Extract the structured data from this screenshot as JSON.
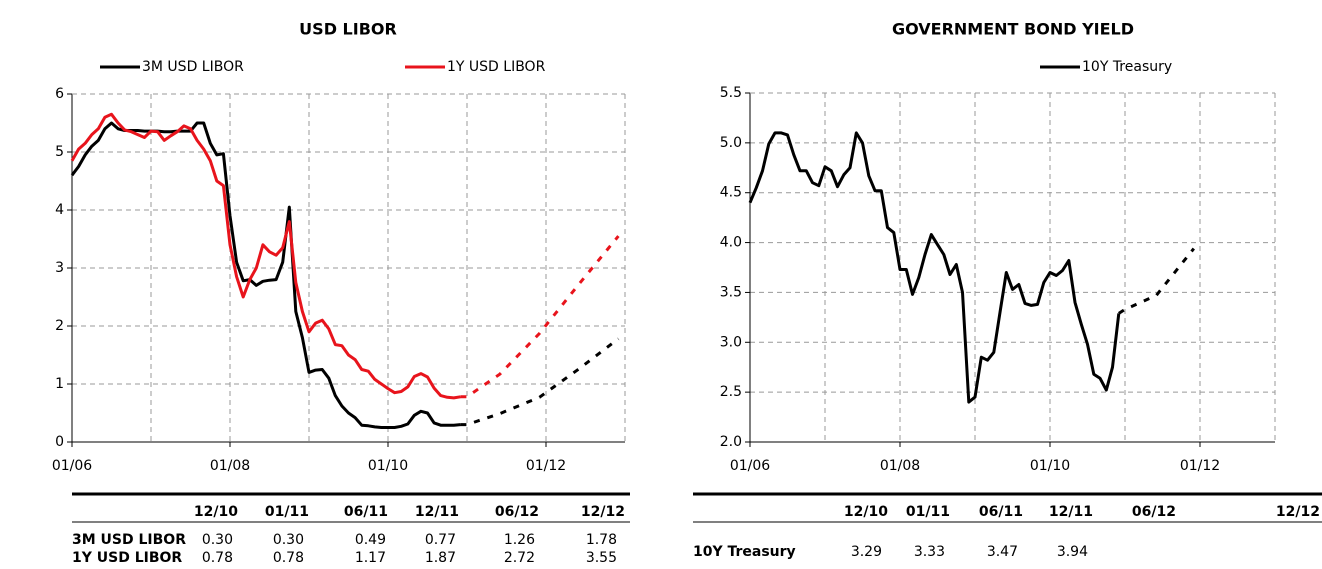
{
  "chart_data": [
    {
      "type": "line",
      "title": "USD LIBOR",
      "x": [
        "01/06",
        "02/06",
        "03/06",
        "04/06",
        "05/06",
        "06/06",
        "07/06",
        "08/06",
        "09/06",
        "10/06",
        "11/06",
        "12/06",
        "01/07",
        "02/07",
        "03/07",
        "04/07",
        "05/07",
        "06/07",
        "07/07",
        "08/07",
        "09/07",
        "10/07",
        "11/07",
        "12/07",
        "01/08",
        "02/08",
        "03/08",
        "04/08",
        "05/08",
        "06/08",
        "07/08",
        "08/08",
        "09/08",
        "10/08",
        "11/08",
        "12/08",
        "01/09",
        "02/09",
        "03/09",
        "04/09",
        "05/09",
        "06/09",
        "07/09",
        "08/09",
        "09/09",
        "10/09",
        "11/09",
        "12/09",
        "01/10",
        "02/10",
        "03/10",
        "04/10",
        "05/10",
        "06/10",
        "07/10",
        "08/10",
        "09/10",
        "10/10",
        "11/10",
        "12/10"
      ],
      "forecast_x": [
        "12/10",
        "01/11",
        "06/11",
        "12/11",
        "06/12",
        "12/12"
      ],
      "series": [
        {
          "name": "3M USD LIBOR",
          "color": "#000000",
          "values": [
            4.6,
            4.75,
            4.95,
            5.1,
            5.2,
            5.4,
            5.5,
            5.4,
            5.37,
            5.37,
            5.37,
            5.36,
            5.36,
            5.36,
            5.35,
            5.35,
            5.36,
            5.36,
            5.36,
            5.5,
            5.5,
            5.15,
            4.95,
            4.97,
            3.9,
            3.1,
            2.78,
            2.8,
            2.7,
            2.77,
            2.79,
            2.8,
            3.1,
            4.05,
            2.25,
            1.8,
            1.2,
            1.24,
            1.25,
            1.1,
            0.8,
            0.62,
            0.5,
            0.42,
            0.29,
            0.28,
            0.26,
            0.25,
            0.25,
            0.25,
            0.27,
            0.31,
            0.46,
            0.53,
            0.5,
            0.33,
            0.29,
            0.29,
            0.29,
            0.3
          ],
          "forecast_values": [
            0.3,
            0.3,
            0.49,
            0.77,
            1.26,
            1.78
          ]
        },
        {
          "name": "1Y USD LIBOR",
          "color": "#e8141c",
          "values": [
            4.85,
            5.05,
            5.15,
            5.3,
            5.4,
            5.6,
            5.65,
            5.5,
            5.38,
            5.35,
            5.3,
            5.25,
            5.36,
            5.35,
            5.2,
            5.28,
            5.35,
            5.45,
            5.4,
            5.2,
            5.05,
            4.85,
            4.5,
            4.42,
            3.4,
            2.85,
            2.5,
            2.8,
            3.0,
            3.4,
            3.28,
            3.22,
            3.35,
            3.8,
            2.75,
            2.25,
            1.9,
            2.05,
            2.1,
            1.95,
            1.68,
            1.66,
            1.5,
            1.42,
            1.25,
            1.22,
            1.08,
            1.0,
            0.92,
            0.85,
            0.87,
            0.95,
            1.13,
            1.18,
            1.12,
            0.93,
            0.8,
            0.77,
            0.76,
            0.78
          ],
          "forecast_values": [
            0.78,
            0.78,
            1.17,
            1.87,
            2.72,
            3.55
          ]
        }
      ],
      "xlim": [
        "01/06",
        "01/13"
      ],
      "xticks": [
        "01/06",
        "01/08",
        "01/10",
        "01/12"
      ],
      "ylim": [
        0,
        6
      ],
      "yticks": [
        0,
        1,
        2,
        3,
        4,
        5,
        6
      ],
      "grid": true
    },
    {
      "type": "line",
      "title": "GOVERNMENT BOND YIELD",
      "x": [
        "01/06",
        "02/06",
        "03/06",
        "04/06",
        "05/06",
        "06/06",
        "07/06",
        "08/06",
        "09/06",
        "10/06",
        "11/06",
        "12/06",
        "01/07",
        "02/07",
        "03/07",
        "04/07",
        "05/07",
        "06/07",
        "07/07",
        "08/07",
        "09/07",
        "10/07",
        "11/07",
        "12/07",
        "01/08",
        "02/08",
        "03/08",
        "04/08",
        "05/08",
        "06/08",
        "07/08",
        "08/08",
        "09/08",
        "10/08",
        "11/08",
        "12/08",
        "01/09",
        "02/09",
        "03/09",
        "04/09",
        "05/09",
        "06/09",
        "07/09",
        "08/09",
        "09/09",
        "10/09",
        "11/09",
        "12/09",
        "01/10",
        "02/10",
        "03/10",
        "04/10",
        "05/10",
        "06/10",
        "07/10",
        "08/10",
        "09/10",
        "10/10",
        "11/10",
        "12/10"
      ],
      "forecast_x": [
        "12/10",
        "01/11",
        "06/11",
        "12/11"
      ],
      "series": [
        {
          "name": "10Y Treasury",
          "color": "#000000",
          "values": [
            4.4,
            4.55,
            4.72,
            4.99,
            5.1,
            5.1,
            5.08,
            4.88,
            4.72,
            4.72,
            4.6,
            4.57,
            4.76,
            4.72,
            4.56,
            4.68,
            4.75,
            5.1,
            5.0,
            4.67,
            4.52,
            4.52,
            4.15,
            4.1,
            3.73,
            3.73,
            3.48,
            3.65,
            3.88,
            4.08,
            3.98,
            3.88,
            3.68,
            3.78,
            3.5,
            2.4,
            2.45,
            2.85,
            2.82,
            2.9,
            3.3,
            3.7,
            3.53,
            3.58,
            3.39,
            3.37,
            3.38,
            3.6,
            3.7,
            3.67,
            3.72,
            3.82,
            3.4,
            3.18,
            2.98,
            2.68,
            2.64,
            2.52,
            2.75,
            3.29
          ],
          "forecast_values": [
            3.29,
            3.33,
            3.47,
            3.94
          ]
        }
      ],
      "xlim": [
        "01/06",
        "01/13"
      ],
      "xticks": [
        "01/06",
        "01/08",
        "01/10",
        "01/12"
      ],
      "ylim": [
        2,
        5.5
      ],
      "yticks": [
        {
          "value": 2,
          "label": "2.0"
        },
        2.5,
        {
          "value": 3,
          "label": "3.0"
        },
        3.5,
        {
          "value": 4,
          "label": "4.0"
        },
        4.5,
        {
          "value": 5,
          "label": "5.0"
        },
        5.5
      ],
      "grid": true
    }
  ],
  "tables": [
    {
      "columns": [
        "12/10",
        "01/11",
        "06/11",
        "12/11",
        "06/12",
        "12/12"
      ],
      "rows": [
        [
          "3M USD LIBOR",
          "0.30",
          "0.30",
          "0.49",
          "0.77",
          "1.26",
          "1.78"
        ],
        [
          "1Y USD LIBOR",
          "0.78",
          "0.78",
          "1.17",
          "1.87",
          "2.72",
          "3.55"
        ]
      ]
    },
    {
      "columns": [
        "12/10",
        "01/11",
        "06/11",
        "12/11",
        "06/12",
        "12/12"
      ],
      "rows": [
        [
          "10Y Treasury",
          "3.29",
          "3.33",
          "3.47",
          "3.94"
        ]
      ]
    }
  ]
}
